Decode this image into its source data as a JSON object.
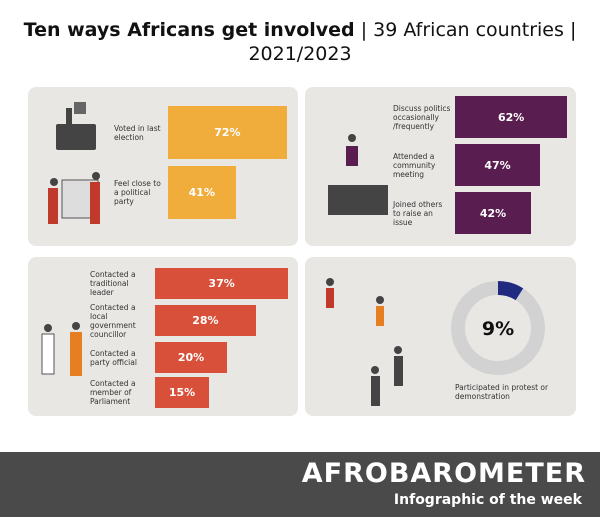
{
  "header": {
    "title": "Ten ways Africans get involved",
    "subtitle": "| 39 African countries | 2021/2023"
  },
  "chart_data": [
    {
      "type": "bar",
      "orientation": "horizontal",
      "categories": [
        "Voted in last election",
        "Feel close to a political party"
      ],
      "values": [
        72,
        41
      ],
      "value_labels": [
        "72%",
        "41%"
      ],
      "color": "#f0ad3c"
    },
    {
      "type": "bar",
      "orientation": "horizontal",
      "categories": [
        "Discuss politics occasionally /frequently",
        "Attended a community meeting",
        "Joined others to raise an issue"
      ],
      "values": [
        62,
        47,
        42
      ],
      "value_labels": [
        "62%",
        "47%",
        "42%"
      ],
      "color": "#5a1d4f"
    },
    {
      "type": "bar",
      "orientation": "horizontal",
      "categories": [
        "Contacted a traditional leader",
        "Contacted a local government councillor",
        "Contacted a party official",
        "Contacted a member of Parliament"
      ],
      "values": [
        37,
        28,
        20,
        15
      ],
      "value_labels": [
        "37%",
        "28%",
        "20%",
        "15%"
      ],
      "color": "#d9503a"
    },
    {
      "type": "pie",
      "categories": [
        "Participated in protest or demonstration"
      ],
      "values": [
        9
      ],
      "value_labels": [
        "9%"
      ],
      "color": "#1f2a80"
    }
  ],
  "footer": {
    "brand": "AFROBAROMETER",
    "tagline": "Infographic of the week"
  }
}
